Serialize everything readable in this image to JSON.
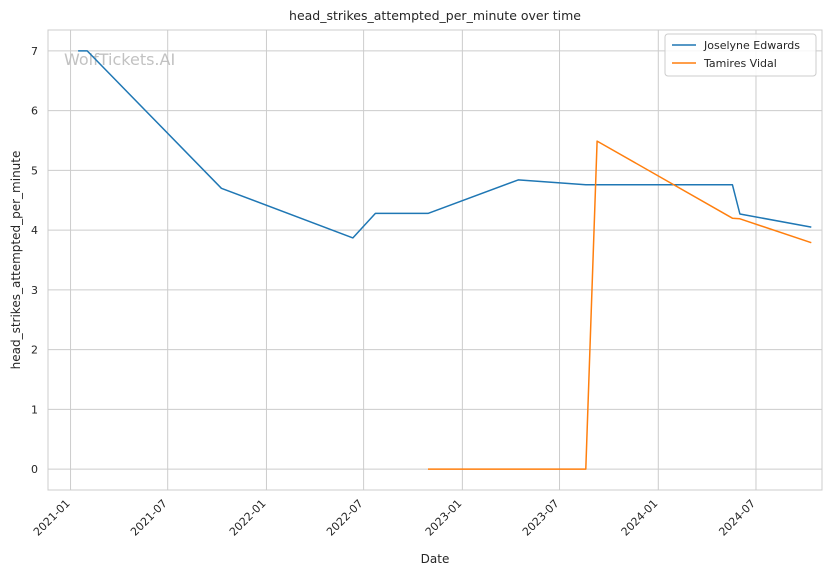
{
  "watermark": "WolfTickets.AI",
  "chart_data": {
    "type": "line",
    "title": "head_strikes_attempted_per_minute over time",
    "xlabel": "Date",
    "ylabel": "head_strikes_attempted_per_minute",
    "x_ticks": [
      "2021-01",
      "2021-07",
      "2022-01",
      "2022-07",
      "2023-01",
      "2023-07",
      "2024-01",
      "2024-07"
    ],
    "y_ticks": [
      0,
      1,
      2,
      3,
      4,
      5,
      6,
      7
    ],
    "xlim": [
      "2020-11-20",
      "2024-11-01"
    ],
    "ylim": [
      -0.35,
      7.35
    ],
    "grid": true,
    "legend_position": "top-right",
    "series": [
      {
        "name": "Joselyne Edwards",
        "color": "#1f77b4",
        "points": [
          [
            "2021-01-15",
            7.0
          ],
          [
            "2021-02-01",
            7.0
          ],
          [
            "2021-10-09",
            4.7
          ],
          [
            "2022-06-11",
            3.87
          ],
          [
            "2022-07-23",
            4.28
          ],
          [
            "2022-10-29",
            4.28
          ],
          [
            "2023-04-15",
            4.84
          ],
          [
            "2023-08-19",
            4.76
          ],
          [
            "2024-05-18",
            4.76
          ],
          [
            "2024-06-01",
            4.27
          ],
          [
            "2024-10-12",
            4.05
          ]
        ]
      },
      {
        "name": "Tamires Vidal",
        "color": "#ff7f0e",
        "points": [
          [
            "2022-10-29",
            0.0
          ],
          [
            "2023-08-19",
            0.0
          ],
          [
            "2023-09-09",
            5.49
          ],
          [
            "2024-05-18",
            4.2
          ],
          [
            "2024-06-01",
            4.19
          ],
          [
            "2024-10-12",
            3.79
          ]
        ]
      }
    ]
  }
}
